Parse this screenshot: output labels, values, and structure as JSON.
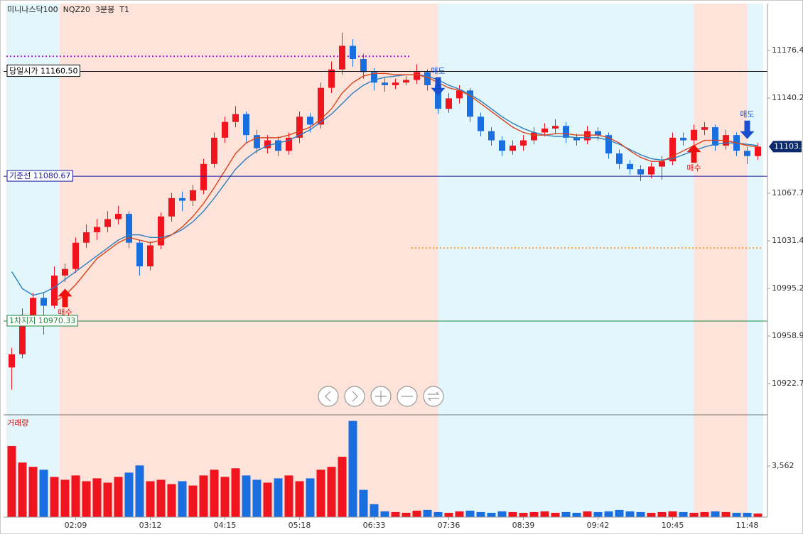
{
  "chart_data": {
    "type": "candlestick",
    "title": "미니나스닥100  NQZ20  3분봉  T1",
    "categories": [
      null,
      null,
      null,
      null,
      null,
      null,
      "02:09",
      null,
      null,
      null,
      null,
      null,
      null,
      "03:12",
      null,
      null,
      null,
      null,
      null,
      null,
      "04:15",
      null,
      null,
      null,
      null,
      null,
      null,
      "05:18",
      null,
      null,
      null,
      null,
      null,
      null,
      "06:33",
      null,
      null,
      null,
      null,
      null,
      null,
      "07:36",
      null,
      null,
      null,
      null,
      null,
      null,
      "08:39",
      null,
      null,
      null,
      null,
      null,
      null,
      "09:42",
      null,
      null,
      null,
      null,
      null,
      null,
      "10:45",
      null,
      null,
      null,
      null,
      null,
      null,
      "11:48",
      null
    ],
    "open": [
      10935,
      10945,
      10975,
      10988,
      10982,
      11005,
      11010,
      11030,
      11038,
      11042,
      11048,
      11052,
      11030,
      11012,
      11028,
      11050,
      11064,
      11062,
      11070,
      11090,
      11110,
      11122,
      11128,
      11112,
      11102,
      11108,
      11100,
      11110,
      11126,
      11120,
      11148,
      11162,
      11180,
      11170,
      11160,
      11152,
      11150,
      11152,
      11154,
      11160,
      11150,
      11132,
      11140,
      11146,
      11126,
      11115,
      11108,
      11100,
      11104,
      11108,
      11114,
      11117,
      11119,
      11110,
      11108,
      11115,
      11112,
      11098,
      11090,
      11086,
      11082,
      11088,
      11092,
      11110,
      11108,
      11116,
      11118,
      11104,
      11112,
      11100,
      11096
    ],
    "high": [
      10950,
      10980,
      10992,
      10992,
      11012,
      11014,
      11034,
      11044,
      11048,
      11054,
      11058,
      11054,
      11032,
      11031,
      11053,
      11068,
      11069,
      11074,
      11094,
      11114,
      11126,
      11134,
      11130,
      11116,
      11112,
      11111,
      11114,
      11130,
      11129,
      11152,
      11168,
      11190,
      11185,
      11174,
      11163,
      11156,
      11155,
      11157,
      11166,
      11162,
      11153,
      11144,
      11150,
      11148,
      11129,
      11118,
      11111,
      11108,
      11112,
      11118,
      11121,
      11124,
      11122,
      11113,
      11119,
      11118,
      11114,
      11101,
      11093,
      11089,
      11091,
      11096,
      11114,
      11114,
      11120,
      11122,
      11120,
      11116,
      11114,
      11103,
      11106
    ],
    "low": [
      10918,
      10942,
      10972,
      10960,
      10980,
      11000,
      11007,
      11026,
      11032,
      11038,
      11044,
      11026,
      11005,
      11009,
      11025,
      11046,
      11054,
      11058,
      11067,
      11087,
      11106,
      11118,
      11106,
      11098,
      11098,
      11096,
      11097,
      11106,
      11114,
      11117,
      11144,
      11158,
      11164,
      11155,
      11146,
      11145,
      11147,
      11150,
      11151,
      11146,
      11128,
      11129,
      11136,
      11122,
      11111,
      11104,
      11096,
      11097,
      11100,
      11105,
      11111,
      11113,
      11106,
      11104,
      11105,
      11108,
      11094,
      11086,
      11082,
      11077,
      11079,
      11078,
      11089,
      11104,
      11105,
      11112,
      11100,
      11101,
      11096,
      11090,
      11093
    ],
    "close": [
      10945,
      10975,
      10988,
      10982,
      11005,
      11010,
      11030,
      11038,
      11042,
      11048,
      11052,
      11030,
      11012,
      11028,
      11050,
      11064,
      11062,
      11070,
      11090,
      11110,
      11122,
      11128,
      11112,
      11102,
      11108,
      11100,
      11110,
      11126,
      11120,
      11148,
      11162,
      11180,
      11170,
      11160,
      11152,
      11150,
      11152,
      11154,
      11160,
      11150,
      11132,
      11140,
      11146,
      11126,
      11115,
      11108,
      11100,
      11104,
      11108,
      11114,
      11117,
      11119,
      11110,
      11108,
      11115,
      11112,
      11098,
      11090,
      11086,
      11082,
      11088,
      11092,
      11110,
      11108,
      11116,
      11118,
      11104,
      11112,
      11100,
      11096,
      11103.25
    ],
    "up_color": "#f0141e",
    "down_color": "#1a6fe0",
    "ylim": [
      10898.9,
      11212.2
    ],
    "yticks": [
      10922.74,
      10958.99,
      10995.24,
      11031.49,
      11067.74,
      11140.24,
      11176.49
    ],
    "ma": [
      {
        "color": "#2a7fc0",
        "values": [
          11008,
          10995,
          10990,
          10992,
          10996,
          11002,
          11008,
          11014,
          11020,
          11026,
          11032,
          11036,
          11036,
          11034,
          11034,
          11036,
          11040,
          11046,
          11054,
          11064,
          11075,
          11086,
          11094,
          11100,
          11104,
          11106,
          11108,
          11112,
          11116,
          11122,
          11128,
          11136,
          11144,
          11150,
          11154,
          11156,
          11157,
          11158,
          11158,
          11157,
          11154,
          11150,
          11147,
          11143,
          11138,
          11132,
          11126,
          11121,
          11117,
          11114,
          11112,
          11111,
          11111,
          11110,
          11110,
          11110,
          11108,
          11105,
          11101,
          11097,
          11094,
          11093,
          11094,
          11097,
          11100,
          11103,
          11105,
          11106,
          11106,
          11105,
          11104
        ]
      },
      {
        "color": "#d9441a",
        "values": [
          null,
          null,
          null,
          null,
          10985,
          10990,
          10998,
          11008,
          11018,
          11024,
          11030,
          11034,
          11032,
          11030,
          11032,
          11036,
          11042,
          11050,
          11060,
          11072,
          11085,
          11098,
          11106,
          11110,
          11110,
          11110,
          11112,
          11115,
          11118,
          11124,
          11132,
          11144,
          11152,
          11157,
          11159,
          11159,
          11158,
          11158,
          11158,
          11156,
          11152,
          11148,
          11146,
          11142,
          11136,
          11130,
          11124,
          11118,
          11114,
          11112,
          11112,
          11113,
          11113,
          11112,
          11112,
          11112,
          11110,
          11106,
          11100,
          11095,
          11092,
          11092,
          11096,
          11100,
          11104,
          11108,
          11108,
          11108,
          11106,
          11104,
          11103
        ]
      }
    ],
    "lines": [
      {
        "name": "당일시가",
        "value": 11160.5,
        "value_label": "11160.50",
        "color": "#000000"
      },
      {
        "name": "기준선",
        "value": 11080.67,
        "color": "#1a1aa0"
      },
      {
        "name": "1차지지",
        "value": 10970.33,
        "color": "#1a8a3a"
      }
    ],
    "dotted": [
      {
        "value": 11172,
        "color": "#b020e0",
        "start": 0,
        "end": 38
      },
      {
        "value": 11026,
        "color": "#ffa040",
        "start": 38,
        "end": 71
      }
    ],
    "sessions": [
      {
        "start": 0,
        "end": 5,
        "color": "#e3f6fc"
      },
      {
        "start": 5,
        "end": 40.5,
        "color": "#fde3da"
      },
      {
        "start": 40.5,
        "end": 64.5,
        "color": "#e3f6fc"
      },
      {
        "start": 64.5,
        "end": 69.5,
        "color": "#fde3da"
      },
      {
        "start": 69.5,
        "end": 71,
        "color": "#e3f6fc"
      }
    ],
    "signals": [
      {
        "label": "매수",
        "index": 5,
        "value": 10995
      },
      {
        "label": "매도",
        "index": 40,
        "value": 11142
      },
      {
        "label": "매수",
        "index": 64,
        "value": 11105
      },
      {
        "label": "매도",
        "index": 69,
        "value": 11109
      }
    ],
    "volume": {
      "label": "거래량",
      "values": [
        4950,
        3800,
        3500,
        3300,
        2800,
        2600,
        2900,
        2500,
        2700,
        2400,
        2800,
        3100,
        3600,
        2500,
        2600,
        2300,
        2500,
        2200,
        2900,
        3300,
        2800,
        3400,
        2900,
        2600,
        2400,
        2700,
        2900,
        2500,
        2700,
        3300,
        3500,
        4200,
        6700,
        1900,
        900,
        400,
        350,
        300,
        450,
        500,
        350,
        300,
        400,
        450,
        350,
        300,
        400,
        350,
        300,
        350,
        400,
        300,
        350,
        300,
        400,
        350,
        400,
        500,
        400,
        350,
        300,
        350,
        400,
        350,
        300,
        350,
        400,
        350,
        300,
        300,
        250
      ],
      "ylim": [
        0,
        7124
      ],
      "yticks": [
        {
          "value": 3562,
          "label": "3,562"
        }
      ]
    }
  }
}
